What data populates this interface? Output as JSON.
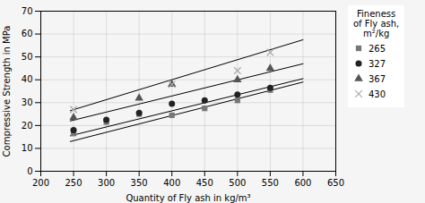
{
  "chart_data": {
    "type": "scatter",
    "xlabel": "Quantity of Fly ash in kg/m³",
    "ylabel": "Compressive Strength in MPa",
    "xlim": [
      200,
      650
    ],
    "ylim": [
      0,
      70
    ],
    "xticks": [
      200,
      250,
      300,
      350,
      400,
      450,
      500,
      550,
      600,
      650
    ],
    "yticks": [
      0,
      10,
      20,
      30,
      40,
      50,
      60,
      70
    ],
    "grid": true,
    "legend": "right",
    "legend_title": "Fineness\nof Fly ash,\nm²/kg",
    "series": [
      {
        "name": "265",
        "marker": "square",
        "color": "#777777",
        "x": [
          250,
          300,
          350,
          400,
          450,
          500,
          550
        ],
        "values": [
          16.5,
          21.5,
          25.0,
          24.5,
          27.5,
          31.0,
          35.5
        ],
        "fit_line": {
          "type": "line",
          "color": "#000000",
          "x": [
            245,
            600
          ],
          "values": [
            13.0,
            39.0
          ]
        }
      },
      {
        "name": "327",
        "marker": "circle",
        "color": "#222222",
        "x": [
          250,
          300,
          350,
          400,
          450,
          500,
          550
        ],
        "values": [
          18.0,
          22.5,
          25.5,
          29.5,
          31.0,
          33.5,
          36.5
        ],
        "fit_line": {
          "type": "line",
          "color": "#000000",
          "x": [
            245,
            600
          ],
          "values": [
            15.5,
            40.5
          ]
        }
      },
      {
        "name": "367",
        "marker": "triangle",
        "color": "#555555",
        "x": [
          250,
          350,
          400,
          500,
          550
        ],
        "values": [
          23.5,
          32.0,
          38.0,
          40.0,
          45.0
        ],
        "fit_line": {
          "type": "line",
          "color": "#000000",
          "x": [
            245,
            600
          ],
          "values": [
            22.0,
            47.0
          ]
        }
      },
      {
        "name": "430",
        "marker": "x",
        "color": "#aaaaaa",
        "x": [
          250,
          400,
          500,
          550
        ],
        "values": [
          27.0,
          38.0,
          44.0,
          52.0
        ],
        "fit_line": {
          "type": "line",
          "color": "#000000",
          "x": [
            245,
            600
          ],
          "values": [
            26.5,
            57.5
          ]
        }
      }
    ]
  }
}
